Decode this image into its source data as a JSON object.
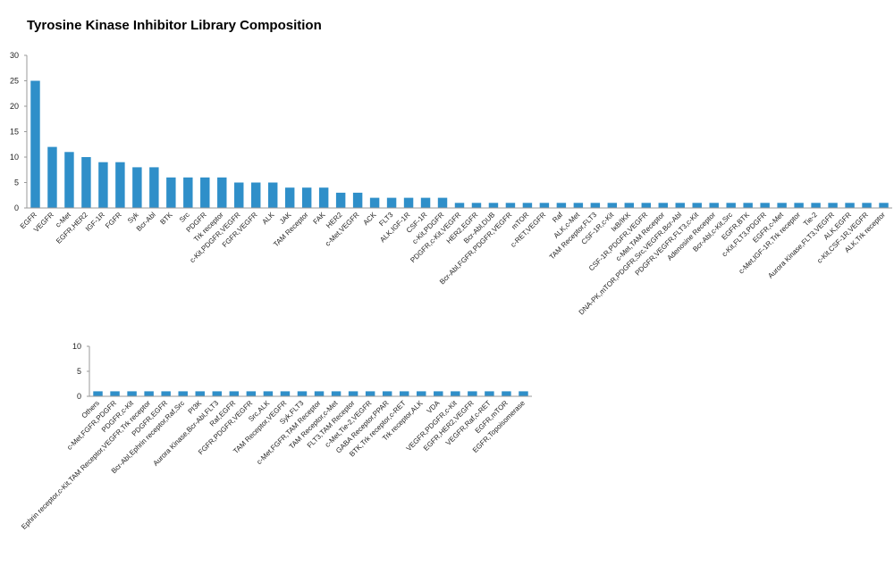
{
  "title": "Tyrosine Kinase Inhibitor Library Composition",
  "colors": {
    "bar": "#2f8fc9",
    "axis": "#9a9a9a"
  },
  "chart_data": [
    {
      "type": "bar",
      "title": "Tyrosine Kinase Inhibitor Library Composition",
      "ylim": [
        0,
        30
      ],
      "yticks": [
        0,
        5,
        10,
        15,
        20,
        25,
        30
      ],
      "grid": false,
      "categories": [
        "EGFR",
        "VEGFR",
        "c-Met",
        "EGFR,HER2",
        "IGF-1R",
        "FGFR",
        "Syk",
        "Bcr-Abl",
        "BTK",
        "Src",
        "PDGFR",
        "Trk receptor",
        "c-Kit,PDGFR,VEGFR",
        "FGFR,VEGFR",
        "ALK",
        "JAK",
        "TAM Receptor",
        "FAK",
        "HER2",
        "c-Met,VEGFR",
        "ACK",
        "FLT3",
        "ALK,IGF-1R",
        "CSF-1R",
        "c-Kit,PDGFR",
        "PDGFR,c-Kit,VEGFR",
        "HER2,EGFR",
        "Bcr-Abl,DUB",
        "Bcr-Abl,FGFR,PDGFR,VEGFR",
        "mTOR",
        "c-RET,VEGFR",
        "Raf",
        "ALK,c-Met",
        "TAM Receptor,FLT3",
        "CSF-1R,c-Kit",
        "IκB/IKK",
        "CSF-1R,PDGFR,VEGFR",
        "c-Met,TAM Receptor",
        "DNA-PK,mTOR,PDGFR,Src,VEGFR,Bcr-Abl",
        "PDGFR,VEGFR,FLT3,c-Kit",
        "Adenosine Receptor",
        "Bcr-Abl,c-Kit,Src",
        "EGFR,BTK",
        "c-Kit,FLT3,PDGFR",
        "EGFR,c-Met",
        "c-Met,IGF-1R,Trk receptor",
        "Tie-2",
        "Aurora Kinase,FLT3,VEGFR",
        "ALK,EGFR",
        "c-Kit,CSF-1R,VEGFR",
        "ALK,Trk receptor"
      ],
      "values": [
        25,
        12,
        11,
        10,
        9,
        9,
        8,
        8,
        6,
        6,
        6,
        6,
        5,
        5,
        5,
        4,
        4,
        4,
        3,
        3,
        2,
        2,
        2,
        2,
        2,
        1,
        1,
        1,
        1,
        1,
        1,
        1,
        1,
        1,
        1,
        1,
        1,
        1,
        1,
        1,
        1,
        1,
        1,
        1,
        1,
        1,
        1,
        1,
        1,
        1,
        1
      ]
    },
    {
      "type": "bar",
      "ylim": [
        0,
        10
      ],
      "yticks": [
        0,
        5,
        10
      ],
      "grid": false,
      "categories": [
        "Others",
        "c-Met,FGFR,PDGFR",
        "PDGFR,c-Kit",
        "Ephrin receptor,c-Kit,TAM Receptor,VEGFR,Trk receptor",
        "PDGFR,EGFR",
        "Bcr-Abl,Ephrin receptor,Raf,Src",
        "PI3K",
        "Aurora Kinase,Bcr-Abl,FLT3",
        "Raf,EGFR",
        "FGFR,PDGFR,VEGFR",
        "Src,ALK",
        "TAM Receptor,VEGFR",
        "Syk,FLT3",
        "c-Met,FGFR,TAM Receptor",
        "TAM Receptor,c-Met",
        "FLT3,TAM Receptor",
        "c-Met,Tie-2,VEGFR",
        "GABA Receptor,PPAR",
        "BTK,Trk receptor,c-RET",
        "Trk receptor,ALK",
        "VDA",
        "VEGFR,PDGFR,c-Kit",
        "EGFR,HER2,VEGFR",
        "VEGFR,Raf,c-RET",
        "EGFR,mTOR",
        "EGFR,Topoisomerase"
      ],
      "values": [
        1,
        1,
        1,
        1,
        1,
        1,
        1,
        1,
        1,
        1,
        1,
        1,
        1,
        1,
        1,
        1,
        1,
        1,
        1,
        1,
        1,
        1,
        1,
        1,
        1,
        1
      ]
    }
  ]
}
